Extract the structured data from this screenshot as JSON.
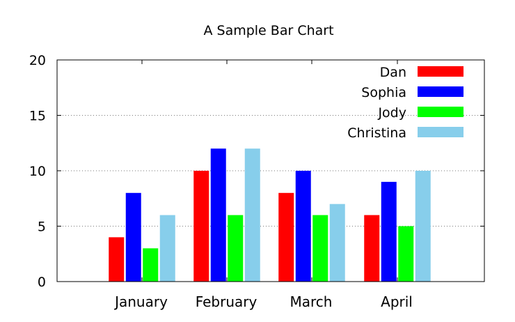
{
  "chart_data": {
    "type": "bar",
    "title": "A Sample Bar Chart",
    "xlabel": "",
    "ylabel": "",
    "categories": [
      "January",
      "February",
      "March",
      "April"
    ],
    "ylim": [
      0,
      20
    ],
    "yticks": [
      "0",
      "5",
      "10",
      "15",
      "20"
    ],
    "grid": "y-dotted",
    "legend_position": "top-right",
    "series": [
      {
        "name": "Dan",
        "color": "#ff0000",
        "values": [
          4,
          10,
          8,
          6
        ]
      },
      {
        "name": "Sophia",
        "color": "#0000ff",
        "values": [
          8,
          12,
          10,
          9
        ]
      },
      {
        "name": "Jody",
        "color": "#00ff00",
        "values": [
          3,
          6,
          6,
          5
        ]
      },
      {
        "name": "Christina",
        "color": "#87ceeb",
        "values": [
          6,
          12,
          7,
          10
        ]
      }
    ]
  }
}
